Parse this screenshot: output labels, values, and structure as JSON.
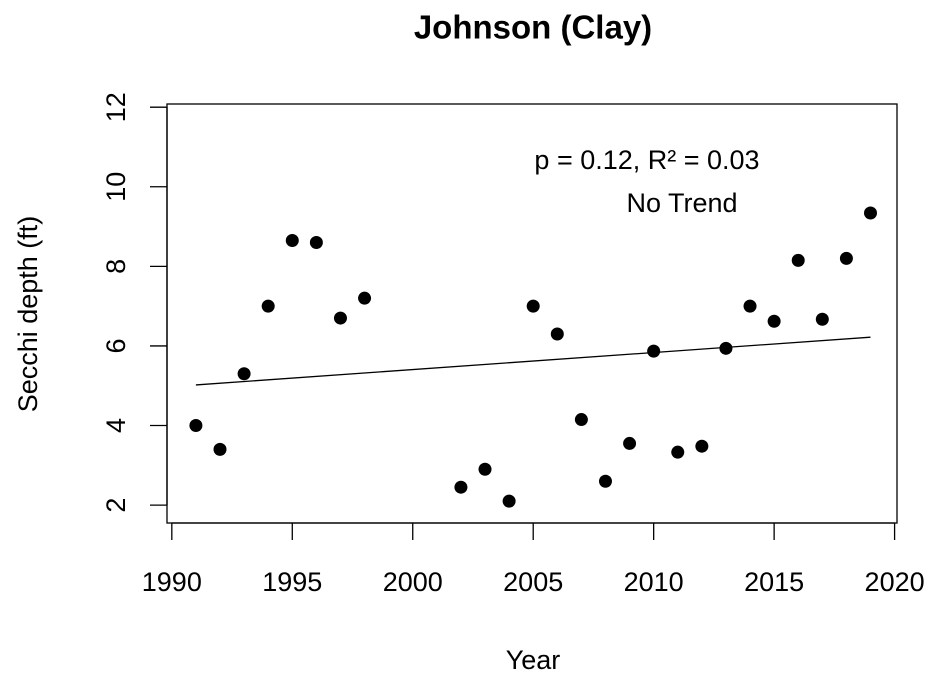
{
  "chart_data": {
    "type": "scatter",
    "title": "Johnson (Clay)",
    "x_label": "Year",
    "y_label": "Secchi depth (ft)",
    "annotations": [
      "p = 0.12, R² = 0.03",
      "No Trend"
    ],
    "series": [
      {
        "name": "Secchi depth",
        "color": "#000000",
        "x": [
          1991,
          1992,
          1993,
          1994,
          1995,
          1996,
          1997,
          1998,
          2002,
          2003,
          2004,
          2005,
          2006,
          2007,
          2008,
          2009,
          2010,
          2011,
          2012,
          2013,
          2014,
          2015,
          2016,
          2017,
          2018,
          2019
        ],
        "values": [
          4.0,
          3.4,
          5.3,
          7.0,
          8.65,
          8.6,
          6.7,
          7.2,
          2.45,
          2.9,
          2.1,
          7.0,
          6.3,
          4.15,
          2.6,
          3.55,
          5.87,
          3.33,
          3.48,
          5.94,
          7.0,
          6.62,
          8.15,
          6.67,
          8.2,
          9.34
        ]
      }
    ],
    "trend_line": {
      "x": [
        1991,
        2019
      ],
      "values": [
        5.02,
        6.22
      ],
      "color": "#000000"
    },
    "xlim": [
      1989.8,
      2020.1
    ],
    "xticks": [
      1990,
      1995,
      2000,
      2005,
      2010,
      2015,
      2020
    ],
    "ylim": [
      1.55,
      12.08
    ],
    "yticks": [
      2,
      4,
      6,
      8,
      10,
      12
    ],
    "grid": false
  }
}
